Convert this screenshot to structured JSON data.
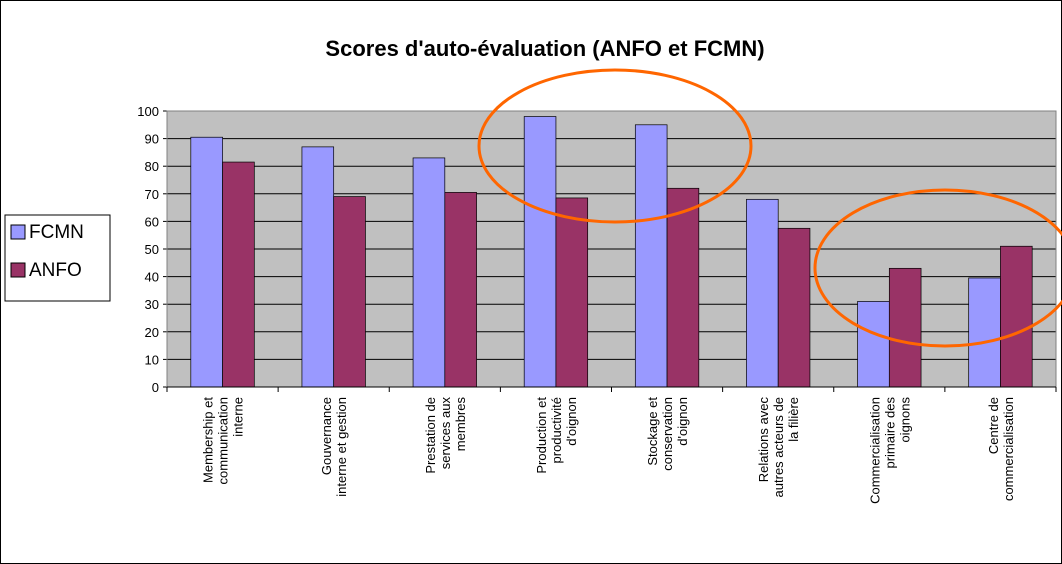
{
  "chart_data": {
    "type": "bar",
    "title": "Scores d'auto-évaluation (ANFO et FCMN)",
    "categories": [
      "Membership et\ncommunication\ninterne",
      "Gouvernance\ninterne et gestion",
      "Prestation de\nservices aux\nmembres",
      "Production et\nproductivité\nd'oignon",
      "Stockage et\nconservation\nd'oignon",
      "Relations avec\nautres acteurs de\nla filière",
      "Commercialisation\nprimaire des\noignons",
      "Centre de\ncommercialisation"
    ],
    "series": [
      {
        "name": "FCMN",
        "color": "#9999ff",
        "values": [
          90.5,
          87,
          83,
          98,
          95,
          68,
          31,
          39.5
        ]
      },
      {
        "name": "ANFO",
        "color": "#993366",
        "values": [
          81.5,
          69,
          70.5,
          68.5,
          72,
          57.5,
          43,
          51
        ]
      }
    ],
    "ylim": [
      0,
      100
    ],
    "yticks": [
      0,
      10,
      20,
      30,
      40,
      50,
      60,
      70,
      80,
      90,
      100
    ],
    "grid": true,
    "legend": "left"
  }
}
